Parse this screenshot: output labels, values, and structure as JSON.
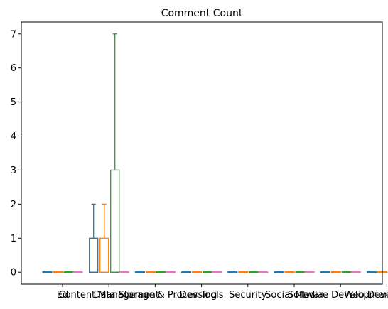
{
  "chart_data": {
    "type": "box",
    "title": "Comment Count",
    "xlabel": "",
    "ylabel": "",
    "ylim": [
      -0.35,
      7.35
    ],
    "yticks": [
      0,
      1,
      2,
      3,
      4,
      5,
      6,
      7
    ],
    "categories": [
      "Ed",
      "Content Management",
      "Data Storage & Processing",
      "Dev Tools",
      "Security",
      "Social Media",
      "Software Development",
      "Web Development"
    ],
    "groups_per_category": 4,
    "group_colors": [
      "#1f77b4",
      "#ff7f0e",
      "#2ca02c",
      "#e377c2"
    ],
    "boxes": [
      [
        {
          "min": 0,
          "q1": 0,
          "median": 0,
          "q3": 0,
          "max": 0
        },
        {
          "min": 0,
          "q1": 0,
          "median": 0,
          "q3": 0,
          "max": 0
        },
        {
          "min": 0,
          "q1": 0,
          "median": 0,
          "q3": 0,
          "max": 0
        },
        {
          "min": 0,
          "q1": 0,
          "median": 0,
          "q3": 0,
          "max": 0
        }
      ],
      [
        {
          "min": 0,
          "q1": 0,
          "median": 0,
          "q3": 1,
          "max": 2
        },
        {
          "min": 0,
          "q1": 0,
          "median": 0,
          "q3": 1,
          "max": 2
        },
        {
          "min": 0,
          "q1": 0,
          "median": 0,
          "q3": 3,
          "max": 7
        },
        {
          "min": 0,
          "q1": 0,
          "median": 0,
          "q3": 0,
          "max": 0
        }
      ],
      [
        {
          "min": 0,
          "q1": 0,
          "median": 0,
          "q3": 0,
          "max": 0
        },
        {
          "min": 0,
          "q1": 0,
          "median": 0,
          "q3": 0,
          "max": 0
        },
        {
          "min": 0,
          "q1": 0,
          "median": 0,
          "q3": 0,
          "max": 0
        },
        {
          "min": 0,
          "q1": 0,
          "median": 0,
          "q3": 0,
          "max": 0
        }
      ],
      [
        {
          "min": 0,
          "q1": 0,
          "median": 0,
          "q3": 0,
          "max": 0
        },
        {
          "min": 0,
          "q1": 0,
          "median": 0,
          "q3": 0,
          "max": 0
        },
        {
          "min": 0,
          "q1": 0,
          "median": 0,
          "q3": 0,
          "max": 0
        },
        {
          "min": 0,
          "q1": 0,
          "median": 0,
          "q3": 0,
          "max": 0
        }
      ],
      [
        {
          "min": 0,
          "q1": 0,
          "median": 0,
          "q3": 0,
          "max": 0
        },
        {
          "min": 0,
          "q1": 0,
          "median": 0,
          "q3": 0,
          "max": 0
        },
        {
          "min": 0,
          "q1": 0,
          "median": 0,
          "q3": 0,
          "max": 0
        },
        {
          "min": 0,
          "q1": 0,
          "median": 0,
          "q3": 0,
          "max": 0
        }
      ],
      [
        {
          "min": 0,
          "q1": 0,
          "median": 0,
          "q3": 0,
          "max": 0
        },
        {
          "min": 0,
          "q1": 0,
          "median": 0,
          "q3": 0,
          "max": 0
        },
        {
          "min": 0,
          "q1": 0,
          "median": 0,
          "q3": 0,
          "max": 0
        },
        {
          "min": 0,
          "q1": 0,
          "median": 0,
          "q3": 0,
          "max": 0
        }
      ],
      [
        {
          "min": 0,
          "q1": 0,
          "median": 0,
          "q3": 0,
          "max": 0
        },
        {
          "min": 0,
          "q1": 0,
          "median": 0,
          "q3": 0,
          "max": 0
        },
        {
          "min": 0,
          "q1": 0,
          "median": 0,
          "q3": 0,
          "max": 0
        },
        {
          "min": 0,
          "q1": 0,
          "median": 0,
          "q3": 0,
          "max": 0
        }
      ],
      [
        {
          "min": 0,
          "q1": 0,
          "median": 0,
          "q3": 0,
          "max": 0
        },
        {
          "min": 0,
          "q1": 0,
          "median": 0,
          "q3": 0,
          "max": 0
        },
        {
          "min": 0,
          "q1": 0,
          "median": 0,
          "q3": 0,
          "max": 0
        },
        {
          "min": 0,
          "q1": 0,
          "median": 0,
          "q3": 0,
          "max": 0
        }
      ]
    ],
    "grid": false,
    "legend": "none"
  }
}
